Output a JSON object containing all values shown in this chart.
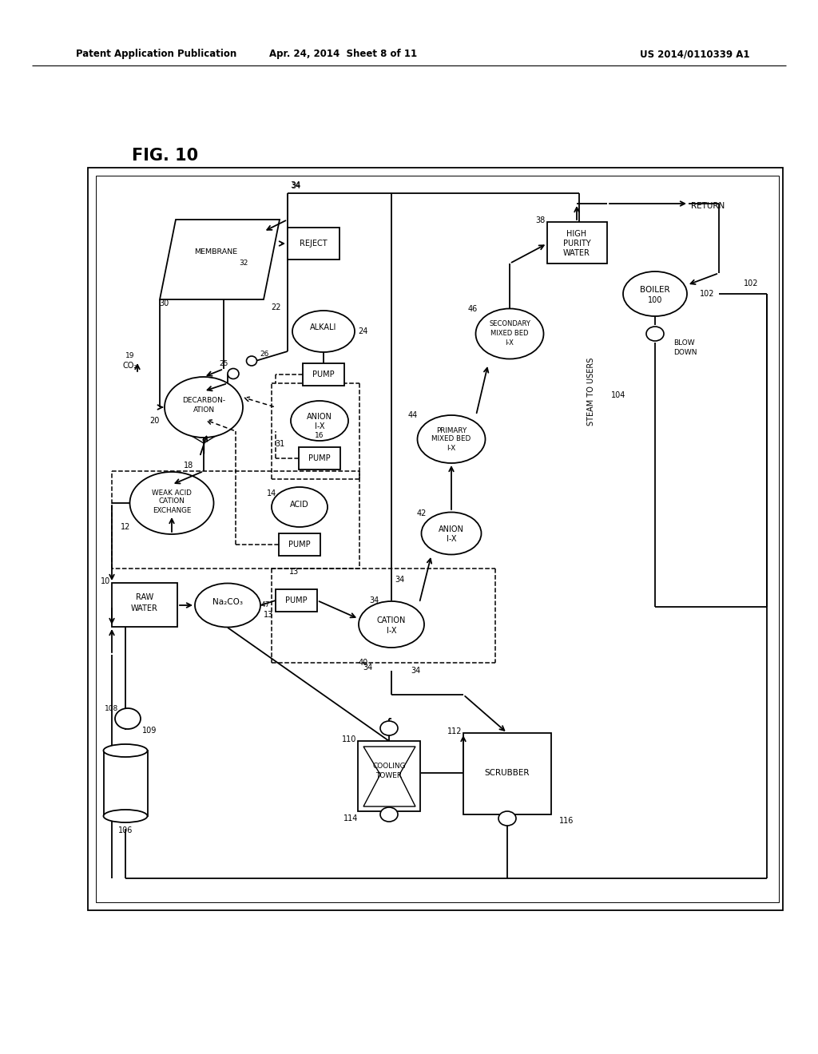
{
  "bg_color": "#ffffff",
  "header_left": "Patent Application Publication",
  "header_mid": "Apr. 24, 2014  Sheet 8 of 11",
  "header_right": "US 2014/0110339 A1"
}
